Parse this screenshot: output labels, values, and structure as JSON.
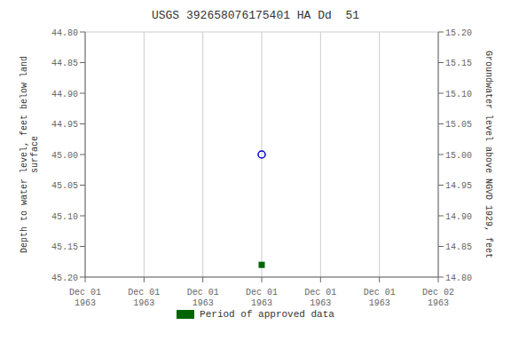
{
  "chart_data": {
    "type": "scatter",
    "title": "USGS 392658076175401 HA Dd  51",
    "ylabel": "Depth to water level, feet below land\nsurface",
    "y2label": "Groundwater level above NGVD 1929, feet",
    "categories": [
      "Dec 01\n1963",
      "Dec 01\n1963",
      "Dec 01\n1963",
      "Dec 01\n1963",
      "Dec 01\n1963",
      "Dec 01\n1963",
      "Dec 02\n1963"
    ],
    "series": [
      {
        "color": "#0000cc",
        "marker": "circle",
        "values": [
          null,
          null,
          null,
          45.0,
          null,
          null,
          null
        ]
      },
      {
        "name": "Period of approved data",
        "color": "#006400",
        "marker": "square",
        "values": [
          null,
          null,
          null,
          45.18,
          null,
          null,
          null
        ]
      }
    ],
    "ylim": [
      45.2,
      44.8
    ],
    "yticks": [
      {
        "value": 44.8,
        "label": "44.80"
      },
      {
        "value": 44.85,
        "label": "44.85"
      },
      {
        "value": 44.9,
        "label": "44.90"
      },
      {
        "value": 44.95,
        "label": "44.95"
      },
      {
        "value": 45.0,
        "label": "45.00"
      },
      {
        "value": 45.05,
        "label": "45.05"
      },
      {
        "value": 45.1,
        "label": "45.10"
      },
      {
        "value": 45.15,
        "label": "45.15"
      },
      {
        "value": 45.2,
        "label": "45.20"
      }
    ],
    "y2lim": [
      14.8,
      15.2
    ],
    "y2ticks": [
      {
        "value": 15.2,
        "label": "15.20"
      },
      {
        "value": 15.15,
        "label": "15.15"
      },
      {
        "value": 15.1,
        "label": "15.10"
      },
      {
        "value": 15.05,
        "label": "15.05"
      },
      {
        "value": 15.0,
        "label": "15.00"
      },
      {
        "value": 14.95,
        "label": "14.95"
      },
      {
        "value": 14.9,
        "label": "14.90"
      },
      {
        "value": 14.85,
        "label": "14.85"
      },
      {
        "value": 14.8,
        "label": "14.80"
      }
    ],
    "grid": true,
    "legend": "bottom"
  }
}
